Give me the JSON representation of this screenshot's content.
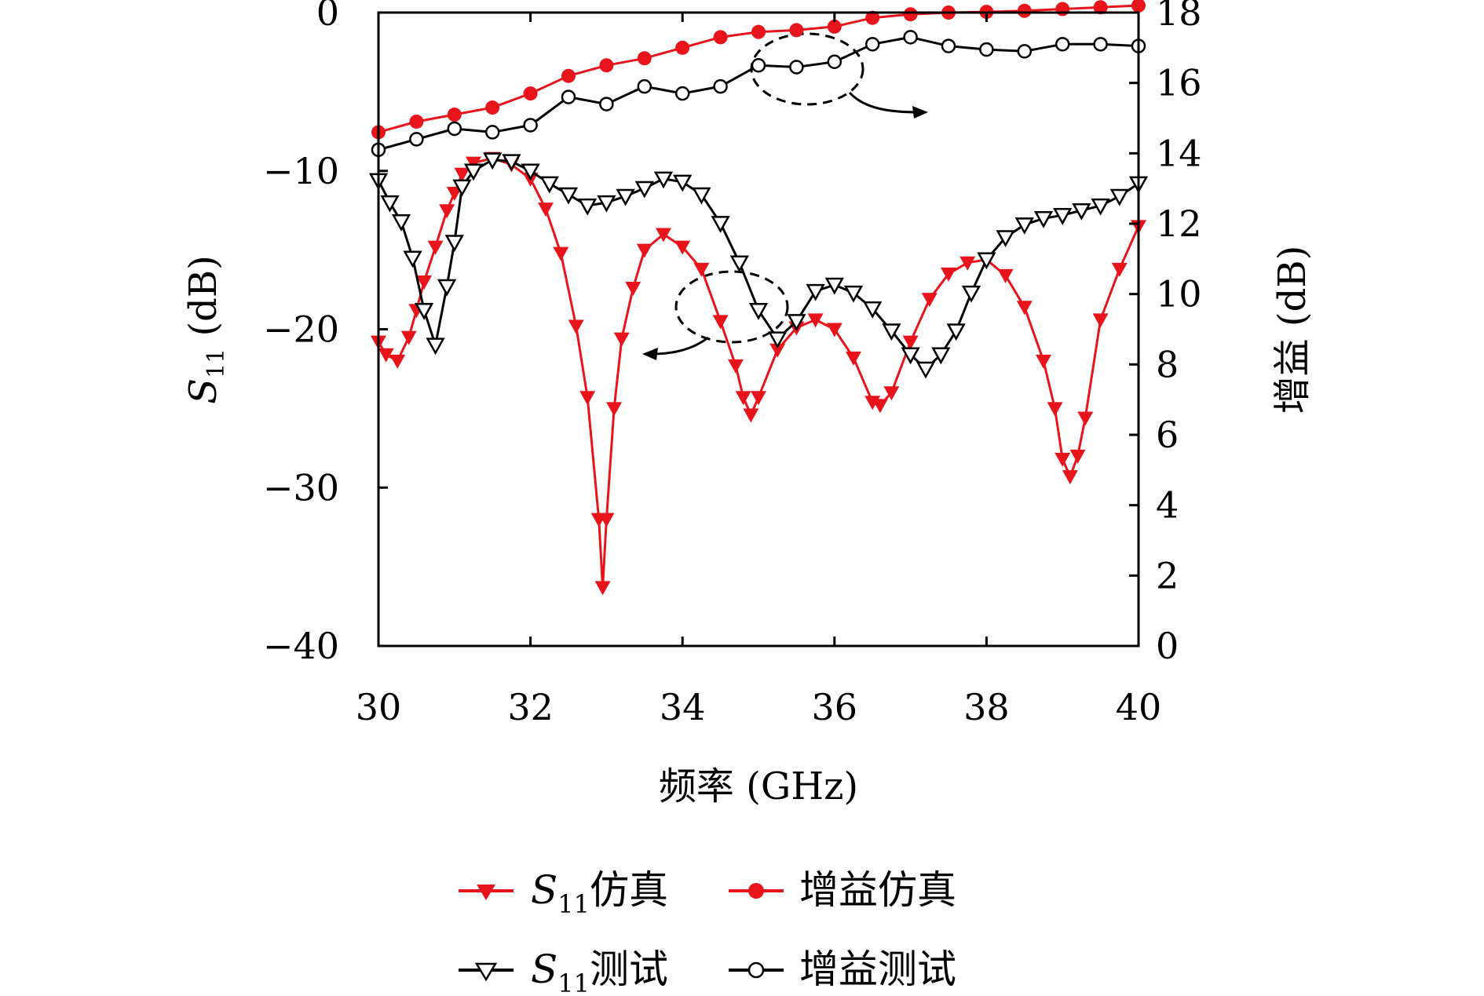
{
  "chart_data": {
    "type": "line",
    "xlabel": "频率 (GHz)",
    "ylabel_left": {
      "base": "S",
      "sub": "11",
      "rest": " (dB)"
    },
    "ylabel_right": "增益 (dB)",
    "xlim": [
      30,
      40
    ],
    "ylim_left": [
      -40,
      0
    ],
    "ylim_right": [
      0,
      18
    ],
    "x_ticks": [
      30,
      32,
      34,
      36,
      38,
      40
    ],
    "x_tick_labels": [
      "30",
      "32",
      "34",
      "36",
      "38",
      "40"
    ],
    "y_left_ticks": [
      0,
      -10,
      -20,
      -30,
      -40
    ],
    "y_left_tick_labels": [
      "0",
      "−10",
      "−20",
      "−30",
      "−40"
    ],
    "y_right_ticks": [
      0,
      2,
      4,
      6,
      8,
      10,
      12,
      14,
      16,
      18
    ],
    "y_right_tick_labels": [
      "0",
      "2",
      "4",
      "6",
      "8",
      "10",
      "12",
      "14",
      "16",
      "18"
    ],
    "legend_position": "bottom",
    "series": [
      {
        "name": {
          "base": "S",
          "sub": "11",
          "rest": "仿真"
        },
        "axis": "left",
        "color": "#e8141c",
        "marker": "triangle-down-filled",
        "x": [
          30.0,
          30.1,
          30.25,
          30.4,
          30.5,
          30.6,
          30.75,
          30.9,
          31.0,
          31.1,
          31.25,
          31.5,
          31.75,
          32.0,
          32.2,
          32.4,
          32.6,
          32.75,
          32.9,
          32.95,
          33.0,
          33.1,
          33.2,
          33.35,
          33.5,
          33.75,
          34.0,
          34.25,
          34.5,
          34.7,
          34.8,
          34.9,
          35.0,
          35.25,
          35.5,
          35.75,
          36.0,
          36.25,
          36.5,
          36.6,
          36.75,
          37.0,
          37.25,
          37.5,
          37.75,
          38.0,
          38.25,
          38.5,
          38.75,
          38.9,
          39.0,
          39.1,
          39.2,
          39.3,
          39.5,
          39.75,
          40.0
        ],
        "y": [
          -20.8,
          -21.6,
          -22.0,
          -20.5,
          -18.8,
          -17.0,
          -14.8,
          -12.5,
          -11.4,
          -10.2,
          -9.5,
          -9.2,
          -9.6,
          -10.5,
          -12.4,
          -15.2,
          -19.8,
          -24.3,
          -32.0,
          -36.3,
          -32.0,
          -25.0,
          -20.6,
          -17.4,
          -15.0,
          -14.0,
          -14.8,
          -16.2,
          -19.5,
          -22.3,
          -24.3,
          -25.4,
          -24.3,
          -21.3,
          -19.9,
          -19.4,
          -20.0,
          -21.8,
          -24.6,
          -24.8,
          -24.0,
          -20.8,
          -18.1,
          -16.5,
          -15.8,
          -15.6,
          -16.6,
          -18.6,
          -22.0,
          -25.0,
          -28.2,
          -29.3,
          -28.0,
          -25.6,
          -19.4,
          -16.2,
          -13.5
        ]
      },
      {
        "name": {
          "base": "S",
          "sub": "11",
          "rest": "测试"
        },
        "axis": "left",
        "color": "#000000",
        "marker": "triangle-down-open",
        "x": [
          30.0,
          30.15,
          30.3,
          30.45,
          30.6,
          30.75,
          30.9,
          31.0,
          31.1,
          31.25,
          31.5,
          31.75,
          32.0,
          32.25,
          32.5,
          32.75,
          33.0,
          33.25,
          33.5,
          33.75,
          34.0,
          34.25,
          34.5,
          34.75,
          35.0,
          35.25,
          35.5,
          35.75,
          36.0,
          36.25,
          36.5,
          36.75,
          37.0,
          37.2,
          37.4,
          37.6,
          37.8,
          38.0,
          38.25,
          38.5,
          38.75,
          39.0,
          39.25,
          39.5,
          39.75,
          40.0
        ],
        "y": [
          -10.6,
          -12.0,
          -13.2,
          -15.5,
          -18.8,
          -21.0,
          -17.3,
          -14.5,
          -11.0,
          -10.0,
          -9.3,
          -9.4,
          -10.0,
          -10.8,
          -11.5,
          -12.2,
          -12.0,
          -11.6,
          -11.1,
          -10.5,
          -10.7,
          -11.5,
          -13.3,
          -15.8,
          -18.8,
          -20.6,
          -19.5,
          -17.6,
          -17.2,
          -17.7,
          -18.7,
          -20.1,
          -21.6,
          -22.5,
          -21.6,
          -20.1,
          -17.7,
          -15.6,
          -14.2,
          -13.4,
          -13.0,
          -12.8,
          -12.5,
          -12.2,
          -11.6,
          -10.8
        ]
      },
      {
        "name": "增益仿真",
        "axis": "right",
        "color": "#e8141c",
        "marker": "circle-filled",
        "x": [
          30.0,
          30.5,
          31.0,
          31.5,
          32.0,
          32.5,
          33.0,
          33.5,
          34.0,
          34.5,
          35.0,
          35.5,
          36.0,
          36.5,
          37.0,
          37.5,
          38.0,
          38.5,
          39.0,
          39.5,
          40.0
        ],
        "y": [
          14.6,
          14.9,
          15.1,
          15.3,
          15.7,
          16.2,
          16.5,
          16.7,
          17.0,
          17.3,
          17.45,
          17.5,
          17.6,
          17.85,
          17.95,
          18.0,
          18.02,
          18.05,
          18.1,
          18.15,
          18.2
        ]
      },
      {
        "name": "增益测试",
        "axis": "right",
        "color": "#000000",
        "marker": "circle-open",
        "x": [
          30.0,
          30.5,
          31.0,
          31.5,
          32.0,
          32.5,
          33.0,
          33.5,
          34.0,
          34.5,
          35.0,
          35.5,
          36.0,
          36.5,
          37.0,
          37.5,
          38.0,
          38.5,
          39.0,
          39.5,
          40.0
        ],
        "y": [
          14.1,
          14.4,
          14.7,
          14.6,
          14.8,
          15.6,
          15.4,
          15.9,
          15.7,
          15.9,
          16.5,
          16.45,
          16.6,
          17.1,
          17.3,
          17.05,
          16.95,
          16.9,
          17.1,
          17.1,
          17.05
        ]
      }
    ]
  }
}
